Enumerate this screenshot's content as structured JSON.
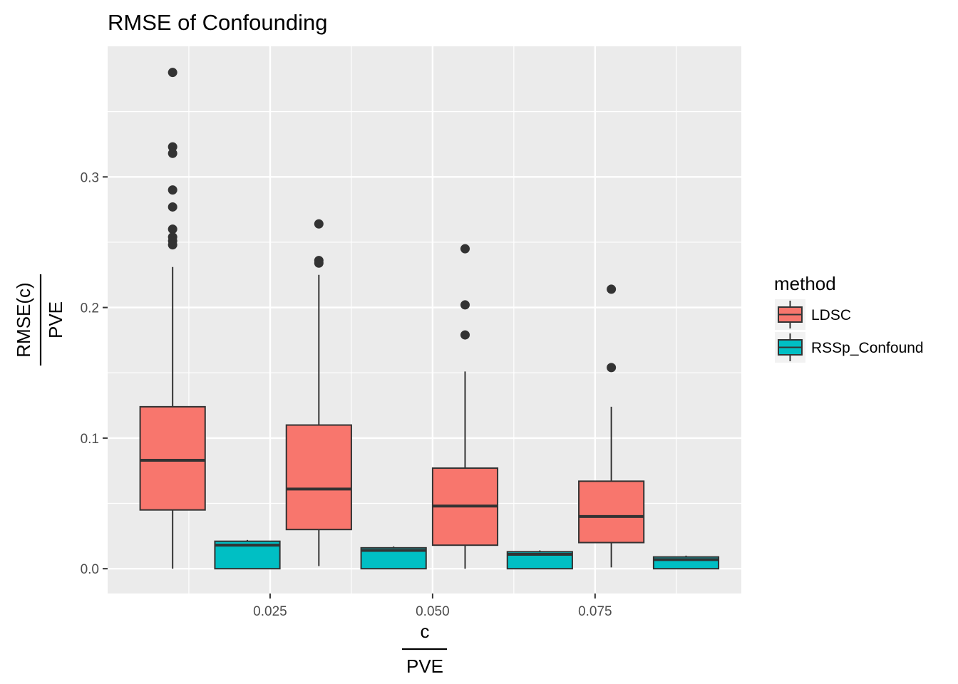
{
  "chart_data": {
    "type": "box",
    "title": "RMSE of Confounding",
    "xlabel": {
      "numerator": "c",
      "denominator": "PVE"
    },
    "ylabel": {
      "numerator": "RMSE(c)",
      "denominator": "PVE"
    },
    "xlim": [
      0.0,
      0.0975
    ],
    "ylim": [
      -0.019,
      0.4
    ],
    "x_ticks": [
      0.025,
      0.05,
      0.075
    ],
    "x_tick_labels": [
      "0.025",
      "0.050",
      "0.075"
    ],
    "x_minor": [
      0.0125,
      0.0375,
      0.0625,
      0.0875
    ],
    "y_ticks": [
      0.0,
      0.1,
      0.2,
      0.3
    ],
    "y_tick_labels": [
      "0.0",
      "0.1",
      "0.2",
      "0.3"
    ],
    "y_minor": [
      0.05,
      0.15,
      0.25,
      0.35
    ],
    "grid": true,
    "panel_color": "#ebebeb",
    "legend": {
      "title": "method",
      "position": "right",
      "entries": [
        {
          "name": "LDSC",
          "color": "#f8766d"
        },
        {
          "name": "RSSp_Confound",
          "color": "#00bfc4"
        }
      ]
    },
    "series": [
      {
        "name": "LDSC",
        "color": "#f8766d",
        "boxes": [
          {
            "x": 0.01,
            "whisker_low": 0.0,
            "q1": 0.045,
            "median": 0.083,
            "q3": 0.124,
            "whisker_high": 0.231,
            "outliers": [
              0.38,
              0.323,
              0.318,
              0.29,
              0.277,
              0.26,
              0.254,
              0.251,
              0.248
            ]
          },
          {
            "x": 0.0325,
            "whisker_low": 0.002,
            "q1": 0.03,
            "median": 0.061,
            "q3": 0.11,
            "whisker_high": 0.225,
            "outliers": [
              0.264,
              0.236,
              0.234
            ]
          },
          {
            "x": 0.055,
            "whisker_low": 0.0,
            "q1": 0.018,
            "median": 0.048,
            "q3": 0.077,
            "whisker_high": 0.151,
            "outliers": [
              0.245,
              0.202,
              0.179
            ]
          },
          {
            "x": 0.0775,
            "whisker_low": 0.001,
            "q1": 0.02,
            "median": 0.04,
            "q3": 0.067,
            "whisker_high": 0.124,
            "outliers": [
              0.214,
              0.154
            ]
          }
        ]
      },
      {
        "name": "RSSp_Confound",
        "color": "#00bfc4",
        "boxes": [
          {
            "x": 0.0215,
            "whisker_low": 0.0,
            "q1": 0.0,
            "median": 0.018,
            "q3": 0.021,
            "whisker_high": 0.022,
            "outliers": []
          },
          {
            "x": 0.044,
            "whisker_low": 0.0,
            "q1": 0.0,
            "median": 0.014,
            "q3": 0.016,
            "whisker_high": 0.017,
            "outliers": []
          },
          {
            "x": 0.0665,
            "whisker_low": 0.0,
            "q1": 0.0,
            "median": 0.011,
            "q3": 0.013,
            "whisker_high": 0.014,
            "outliers": []
          },
          {
            "x": 0.089,
            "whisker_low": 0.0,
            "q1": 0.0,
            "median": 0.007,
            "q3": 0.009,
            "whisker_high": 0.01,
            "outliers": []
          }
        ]
      }
    ]
  }
}
